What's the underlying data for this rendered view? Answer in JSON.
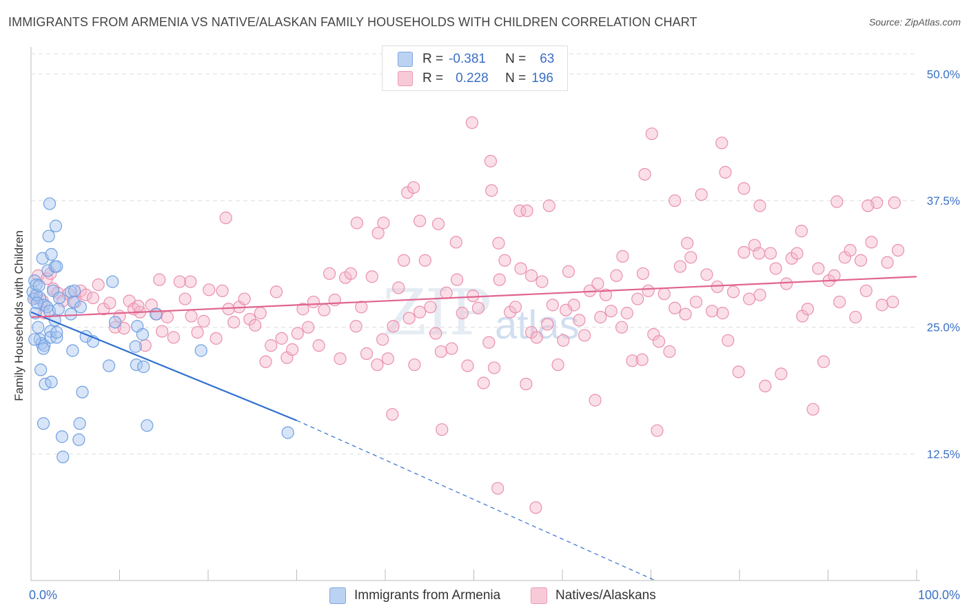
{
  "title": "IMMIGRANTS FROM ARMENIA VS NATIVE/ALASKAN FAMILY HOUSEHOLDS WITH CHILDREN CORRELATION CHART",
  "source": "Source: ZipAtlas.com",
  "watermark": {
    "zip": "ZIP",
    "atlas": "atlas"
  },
  "legend_top": [
    {
      "r_label": "R =",
      "r_value": "-0.381",
      "n_label": "N =",
      "n_value": "63",
      "color": "#a9c5ef"
    },
    {
      "r_label": "R =",
      "r_value": "0.228",
      "n_label": "N =",
      "n_value": "196",
      "color": "#f5b8cb"
    }
  ],
  "legend_bottom": [
    {
      "label": "Immigrants from Armenia",
      "color": "#a9c5ef"
    },
    {
      "label": "Natives/Alaskans",
      "color": "#f5b8cb"
    }
  ],
  "chart_data": {
    "type": "scatter",
    "xlabel": "",
    "ylabel": "Family Households with Children",
    "xlim": [
      0,
      100
    ],
    "ylim": [
      0,
      52
    ],
    "x_tick_labels": [
      "0.0%",
      "100.0%"
    ],
    "y_ticks": [
      12.5,
      25.0,
      37.5,
      50.0
    ],
    "y_tick_labels": [
      "12.5%",
      "25.0%",
      "37.5%",
      "50.0%"
    ],
    "grid": true,
    "series": [
      {
        "name": "Immigrants from Armenia",
        "color": "#6f9fe0",
        "fill": "#a9c5ef",
        "trend_color": "#2f6fd0",
        "trend": {
          "x0": 0,
          "y0": 26.5,
          "x1": 30,
          "y1": 15.8,
          "dash_to_x": 70.5,
          "dash_to_y": 0
        },
        "points": [
          [
            0.2,
            28.5
          ],
          [
            0.3,
            27.8
          ],
          [
            0.4,
            29.6
          ],
          [
            0.5,
            26.4
          ],
          [
            0.6,
            29.2
          ],
          [
            0.8,
            25.0
          ],
          [
            1.0,
            27.9
          ],
          [
            1.0,
            23.8
          ],
          [
            1.2,
            23.4
          ],
          [
            1.1,
            20.8
          ],
          [
            1.3,
            31.8
          ],
          [
            1.5,
            27.2
          ],
          [
            1.5,
            23.2
          ],
          [
            1.6,
            19.4
          ],
          [
            1.4,
            15.5
          ],
          [
            1.8,
            27.0
          ],
          [
            1.9,
            30.6
          ],
          [
            2.0,
            34.0
          ],
          [
            2.1,
            37.2
          ],
          [
            2.3,
            32.2
          ],
          [
            2.1,
            26.6
          ],
          [
            2.2,
            24.6
          ],
          [
            2.2,
            24.0
          ],
          [
            2.3,
            19.6
          ],
          [
            2.5,
            28.6
          ],
          [
            2.7,
            31.0
          ],
          [
            2.7,
            25.7
          ],
          [
            2.8,
            35.0
          ],
          [
            2.9,
            31.0
          ],
          [
            2.9,
            24.0
          ],
          [
            3.5,
            14.2
          ],
          [
            3.6,
            12.2
          ],
          [
            3.2,
            27.9
          ],
          [
            4.5,
            28.5
          ],
          [
            4.5,
            26.3
          ],
          [
            4.7,
            22.7
          ],
          [
            4.8,
            27.5
          ],
          [
            4.9,
            28.6
          ],
          [
            5.4,
            13.9
          ],
          [
            5.5,
            15.5
          ],
          [
            5.6,
            27.0
          ],
          [
            5.8,
            18.6
          ],
          [
            7.0,
            23.6
          ],
          [
            8.8,
            21.2
          ],
          [
            9.2,
            29.5
          ],
          [
            9.5,
            25.5
          ],
          [
            11.8,
            23.1
          ],
          [
            11.9,
            21.3
          ],
          [
            12.0,
            25.1
          ],
          [
            12.6,
            24.3
          ],
          [
            12.7,
            21.1
          ],
          [
            13.1,
            15.3
          ],
          [
            14.1,
            26.3
          ],
          [
            19.2,
            22.7
          ],
          [
            29.0,
            14.6
          ],
          [
            0.6,
            28.2
          ],
          [
            0.7,
            27.4
          ],
          [
            1.4,
            22.9
          ],
          [
            0.9,
            29.1
          ],
          [
            3.1,
            26.8
          ],
          [
            6.2,
            24.1
          ],
          [
            2.9,
            24.5
          ],
          [
            0.4,
            23.8
          ]
        ]
      },
      {
        "name": "Natives/Alaskans",
        "color": "#ea8fac",
        "fill": "#f5b8cb",
        "trend_color": "#e0648e",
        "trend": {
          "x0": 0,
          "y0": 26.0,
          "x1": 100,
          "y1": 30.0
        },
        "points": [
          [
            0.5,
            27.9
          ],
          [
            0.8,
            30.1
          ],
          [
            1.3,
            27.6
          ],
          [
            1.5,
            26.4
          ],
          [
            1.8,
            29.8
          ],
          [
            2.2,
            30.3
          ],
          [
            2.5,
            28.8
          ],
          [
            3.0,
            28.4
          ],
          [
            3.6,
            27.6
          ],
          [
            4.2,
            28.3
          ],
          [
            5.0,
            27.5
          ],
          [
            5.6,
            28.6
          ],
          [
            6.2,
            28.2
          ],
          [
            7.0,
            27.9
          ],
          [
            7.6,
            29.2
          ],
          [
            8.2,
            26.8
          ],
          [
            8.9,
            27.4
          ],
          [
            9.5,
            25.0
          ],
          [
            10.0,
            26.1
          ],
          [
            10.5,
            24.9
          ],
          [
            11.1,
            27.6
          ],
          [
            11.6,
            26.8
          ],
          [
            12.3,
            26.5
          ],
          [
            12.9,
            23.2
          ],
          [
            13.6,
            27.2
          ],
          [
            14.2,
            26.3
          ],
          [
            14.8,
            24.6
          ],
          [
            15.4,
            26.0
          ],
          [
            16.1,
            24.0
          ],
          [
            16.8,
            29.5
          ],
          [
            17.4,
            27.8
          ],
          [
            18.1,
            26.1
          ],
          [
            18.8,
            24.5
          ],
          [
            19.5,
            25.6
          ],
          [
            20.1,
            28.7
          ],
          [
            20.9,
            23.9
          ],
          [
            21.6,
            28.6
          ],
          [
            22.3,
            26.8
          ],
          [
            22.9,
            25.5
          ],
          [
            23.5,
            27.0
          ],
          [
            24.1,
            27.8
          ],
          [
            24.7,
            25.8
          ],
          [
            25.3,
            25.2
          ],
          [
            25.9,
            26.4
          ],
          [
            26.5,
            21.6
          ],
          [
            27.1,
            23.2
          ],
          [
            27.7,
            28.5
          ],
          [
            28.3,
            23.9
          ],
          [
            28.9,
            22.0
          ],
          [
            29.5,
            22.8
          ],
          [
            30.1,
            24.4
          ],
          [
            30.7,
            26.8
          ],
          [
            31.3,
            25.0
          ],
          [
            31.9,
            27.5
          ],
          [
            32.5,
            23.2
          ],
          [
            33.1,
            26.7
          ],
          [
            33.7,
            30.3
          ],
          [
            34.3,
            27.7
          ],
          [
            34.9,
            21.9
          ],
          [
            35.5,
            29.9
          ],
          [
            36.1,
            30.3
          ],
          [
            36.7,
            25.1
          ],
          [
            37.3,
            27.0
          ],
          [
            37.9,
            22.4
          ],
          [
            38.5,
            30.0
          ],
          [
            39.1,
            21.3
          ],
          [
            39.7,
            23.8
          ],
          [
            40.3,
            21.9
          ],
          [
            40.9,
            25.1
          ],
          [
            41.5,
            28.9
          ],
          [
            42.1,
            31.6
          ],
          [
            42.7,
            25.9
          ],
          [
            43.3,
            21.3
          ],
          [
            43.9,
            26.5
          ],
          [
            44.5,
            31.6
          ],
          [
            45.1,
            27.0
          ],
          [
            45.7,
            24.4
          ],
          [
            46.3,
            22.6
          ],
          [
            46.9,
            28.4
          ],
          [
            47.5,
            22.9
          ],
          [
            48.1,
            29.7
          ],
          [
            48.7,
            26.4
          ],
          [
            49.3,
            21.2
          ],
          [
            49.9,
            28.1
          ],
          [
            50.5,
            26.9
          ],
          [
            51.1,
            19.5
          ],
          [
            51.7,
            23.5
          ],
          [
            52.3,
            21.0
          ],
          [
            52.9,
            29.7
          ],
          [
            53.5,
            31.6
          ],
          [
            54.1,
            26.5
          ],
          [
            54.7,
            27.0
          ],
          [
            55.3,
            30.8
          ],
          [
            55.9,
            19.4
          ],
          [
            56.5,
            24.5
          ],
          [
            57.1,
            24.0
          ],
          [
            57.7,
            29.5
          ],
          [
            58.3,
            25.3
          ],
          [
            58.9,
            27.2
          ],
          [
            59.5,
            21.3
          ],
          [
            60.1,
            23.7
          ],
          [
            60.7,
            30.5
          ],
          [
            61.3,
            27.2
          ],
          [
            61.9,
            25.7
          ],
          [
            62.5,
            24.2
          ],
          [
            63.1,
            28.6
          ],
          [
            63.7,
            17.8
          ],
          [
            64.3,
            26.0
          ],
          [
            64.9,
            28.2
          ],
          [
            65.5,
            26.6
          ],
          [
            66.1,
            30.1
          ],
          [
            66.7,
            25.0
          ],
          [
            67.3,
            26.4
          ],
          [
            67.9,
            21.7
          ],
          [
            68.5,
            27.8
          ],
          [
            69.1,
            30.3
          ],
          [
            69.7,
            28.6
          ],
          [
            70.3,
            24.3
          ],
          [
            70.9,
            23.6
          ],
          [
            71.5,
            28.3
          ],
          [
            72.1,
            22.6
          ],
          [
            72.7,
            26.9
          ],
          [
            73.3,
            31.0
          ],
          [
            73.9,
            26.3
          ],
          [
            74.5,
            31.9
          ],
          [
            75.1,
            27.5
          ],
          [
            75.7,
            38.1
          ],
          [
            76.3,
            30.2
          ],
          [
            76.9,
            26.6
          ],
          [
            77.5,
            29.0
          ],
          [
            78.1,
            26.4
          ],
          [
            78.7,
            23.7
          ],
          [
            79.3,
            28.5
          ],
          [
            79.9,
            20.6
          ],
          [
            80.5,
            32.4
          ],
          [
            81.1,
            27.8
          ],
          [
            81.7,
            33.1
          ],
          [
            82.3,
            28.2
          ],
          [
            82.9,
            19.2
          ],
          [
            83.5,
            32.3
          ],
          [
            84.1,
            30.8
          ],
          [
            84.7,
            20.4
          ],
          [
            85.3,
            29.3
          ],
          [
            85.9,
            31.8
          ],
          [
            86.5,
            32.3
          ],
          [
            87.1,
            26.1
          ],
          [
            87.7,
            26.8
          ],
          [
            88.3,
            16.9
          ],
          [
            88.9,
            30.8
          ],
          [
            89.5,
            21.6
          ],
          [
            90.1,
            29.6
          ],
          [
            90.7,
            30.1
          ],
          [
            91.3,
            27.5
          ],
          [
            91.9,
            31.9
          ],
          [
            92.5,
            32.6
          ],
          [
            93.1,
            26.0
          ],
          [
            93.7,
            31.6
          ],
          [
            94.3,
            28.6
          ],
          [
            94.9,
            33.4
          ],
          [
            95.5,
            37.3
          ],
          [
            96.1,
            27.2
          ],
          [
            96.7,
            31.4
          ],
          [
            97.3,
            27.5
          ],
          [
            97.9,
            32.6
          ],
          [
            18.0,
            29.5
          ],
          [
            22.0,
            35.8
          ],
          [
            42.5,
            38.3
          ],
          [
            43.2,
            38.8
          ],
          [
            46.0,
            35.2
          ],
          [
            48.0,
            33.4
          ],
          [
            51.9,
            41.4
          ],
          [
            52.8,
            33.3
          ],
          [
            55.2,
            36.5
          ],
          [
            56.0,
            36.5
          ],
          [
            69.3,
            40.1
          ],
          [
            70.1,
            44.1
          ],
          [
            72.7,
            37.5
          ],
          [
            74.1,
            33.3
          ],
          [
            78.0,
            43.2
          ],
          [
            78.4,
            40.3
          ],
          [
            80.5,
            38.7
          ],
          [
            82.3,
            37.0
          ],
          [
            87.0,
            34.5
          ],
          [
            91.0,
            37.4
          ],
          [
            94.5,
            37.0
          ],
          [
            97.5,
            37.3
          ],
          [
            49.8,
            45.2
          ],
          [
            39.2,
            34.3
          ],
          [
            39.8,
            35.3
          ],
          [
            36.8,
            35.3
          ],
          [
            14.5,
            29.7
          ],
          [
            43.9,
            35.5
          ],
          [
            56.5,
            30.1
          ],
          [
            64.0,
            29.3
          ],
          [
            66.8,
            32.0
          ],
          [
            12.1,
            27.1
          ],
          [
            60.4,
            26.7
          ],
          [
            69.0,
            21.8
          ],
          [
            82.2,
            32.3
          ],
          [
            52.0,
            38.5
          ],
          [
            58.5,
            37.0
          ],
          [
            40.8,
            16.4
          ],
          [
            46.4,
            14.9
          ],
          [
            52.7,
            9.1
          ],
          [
            57.0,
            7.2
          ],
          [
            70.7,
            14.8
          ]
        ]
      }
    ]
  }
}
